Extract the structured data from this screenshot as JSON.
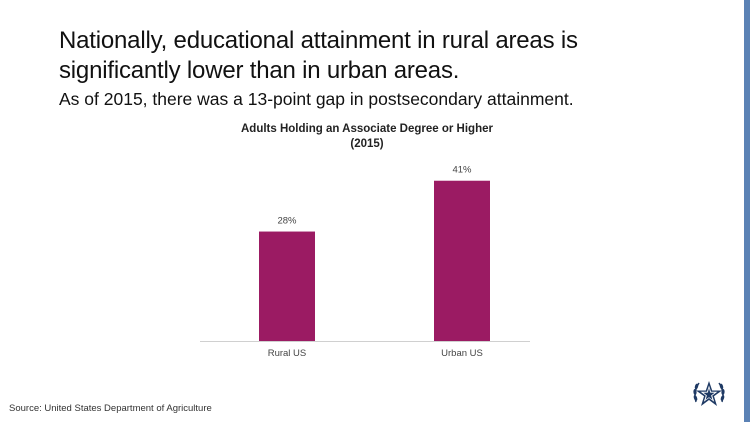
{
  "slide": {
    "headline_line1": "Nationally, educational attainment in rural areas is",
    "headline_line2": "significantly lower than in urban areas.",
    "subhead": "As of 2015, there was a 13-point gap in postsecondary attainment.",
    "source": "Source:  United States Department of Agriculture",
    "logo_icon": "star-wreath-seal-icon",
    "accent_color": "#5b82b5"
  },
  "chart_data": {
    "type": "bar",
    "title": "Adults Holding an Associate Degree or Higher",
    "subtitle": "(2015)",
    "categories": [
      "Rural US",
      "Urban US"
    ],
    "values": [
      28,
      41
    ],
    "value_labels": [
      "28%",
      "41%"
    ],
    "unit": "%",
    "ylim": [
      0,
      44
    ],
    "bar_color": "#9b1b63",
    "grid": false,
    "legend": "none"
  }
}
